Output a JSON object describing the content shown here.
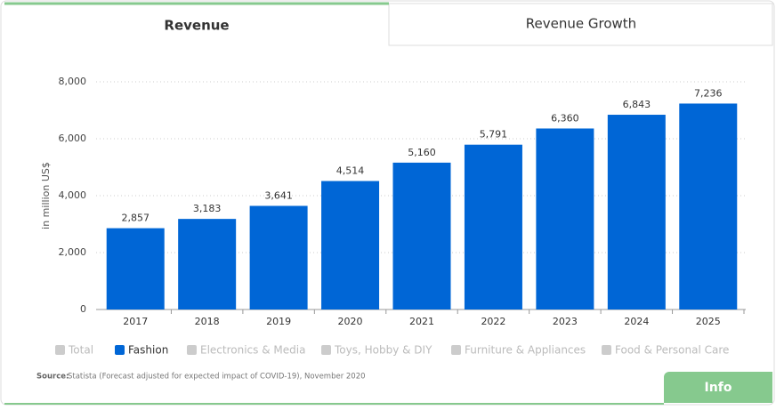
{
  "tabs": [
    "Revenue",
    "Revenue Growth"
  ],
  "chart_data": {
    "type": "bar",
    "y_label": "in million US$",
    "categories": [
      "2017",
      "2018",
      "2019",
      "2020",
      "2021",
      "2022",
      "2023",
      "2024",
      "2025"
    ],
    "series": [
      {
        "name": "Fashion",
        "color": "#0066d6",
        "values": [
          2857,
          3183,
          3641,
          4514,
          5160,
          5791,
          6360,
          6843,
          7236
        ],
        "value_labels": [
          "2,857",
          "3,183",
          "3,641",
          "4,514",
          "5,160",
          "5,791",
          "6,360",
          "6,843",
          "7,236"
        ]
      }
    ],
    "ylim": [
      0,
      8000
    ],
    "yticks": [
      0,
      {
        "value": 2000,
        "label": "2,000"
      },
      {
        "value": 4000,
        "label": "4,000"
      },
      {
        "value": 6000,
        "label": "6,000"
      },
      {
        "value": 8000,
        "label": "8,000"
      }
    ],
    "grid": true
  },
  "legend": [
    {
      "name": "Total",
      "active": false
    },
    {
      "name": "Fashion",
      "active": true
    },
    {
      "name": "Electronics & Media",
      "active": false
    },
    {
      "name": "Toys, Hobby & DIY",
      "active": false
    },
    {
      "name": "Furniture & Appliances",
      "active": false
    },
    {
      "name": "Food & Personal Care",
      "active": false
    }
  ],
  "source": {
    "label": "Source:",
    "text": "Statista (Forecast adjusted for expected impact of COVID-19), November 2020"
  },
  "info_button": "Info"
}
